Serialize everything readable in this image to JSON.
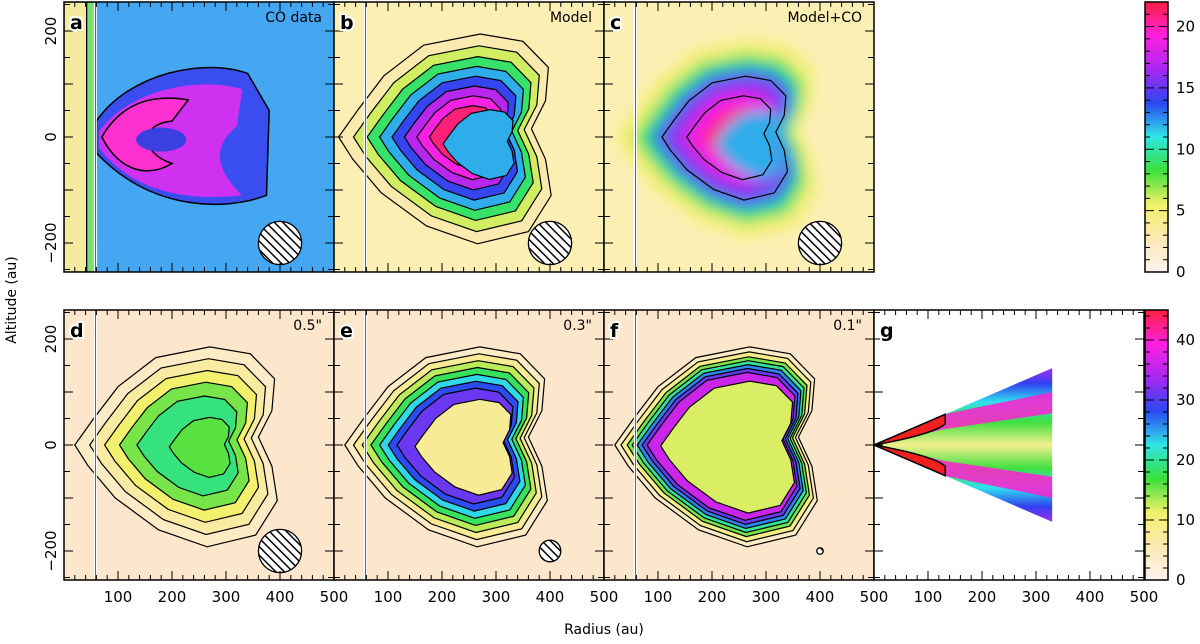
{
  "chart_data": {
    "type": "heatmap",
    "xlabel": "Radius (au)",
    "ylabel": "Altitude (au)",
    "xlim": [
      0,
      500
    ],
    "ylim": [
      -250,
      250
    ],
    "x_ticks": [
      "100",
      "200",
      "300",
      "400",
      "500"
    ],
    "y_ticks": [
      "200",
      "0",
      "−200"
    ],
    "panels": [
      {
        "label": "a",
        "title": "CO data",
        "kind": "data",
        "beam_au": 40
      },
      {
        "label": "b",
        "title": "Model",
        "kind": "model",
        "beam_au": 40
      },
      {
        "label": "c",
        "title": "Model+CO",
        "kind": "smooth",
        "beam_au": 40
      },
      {
        "label": "d",
        "title": "0.5\"",
        "kind": "res05",
        "beam_au": 40
      },
      {
        "label": "e",
        "title": "0.3\"",
        "kind": "res03",
        "beam_au": 20
      },
      {
        "label": "f",
        "title": "0.1\"",
        "kind": "res01",
        "beam_au": 6
      },
      {
        "label": "g",
        "title": "",
        "kind": "wedge",
        "beam_au": 0
      }
    ],
    "colorbars": [
      {
        "range": [
          0,
          22
        ],
        "ticks": [
          "0",
          "5",
          "10",
          "15",
          "20"
        ],
        "tick_values": [
          0,
          5,
          10,
          15,
          20
        ]
      },
      {
        "range": [
          0,
          45
        ],
        "ticks": [
          "0",
          "10",
          "20",
          "30",
          "40"
        ],
        "tick_values": [
          0,
          10,
          20,
          30,
          40
        ]
      }
    ],
    "colors": {
      "cmap": [
        "#fff2f0",
        "#fbe9b4",
        "#f2f06a",
        "#3ae03a",
        "#30e6e6",
        "#2a48f0",
        "#a828f0",
        "#ff20e0",
        "#ff2040"
      ],
      "data_bg": "#45a6f2",
      "res_bg": "#fce6cc",
      "model_bg": "#fbefb4"
    }
  }
}
